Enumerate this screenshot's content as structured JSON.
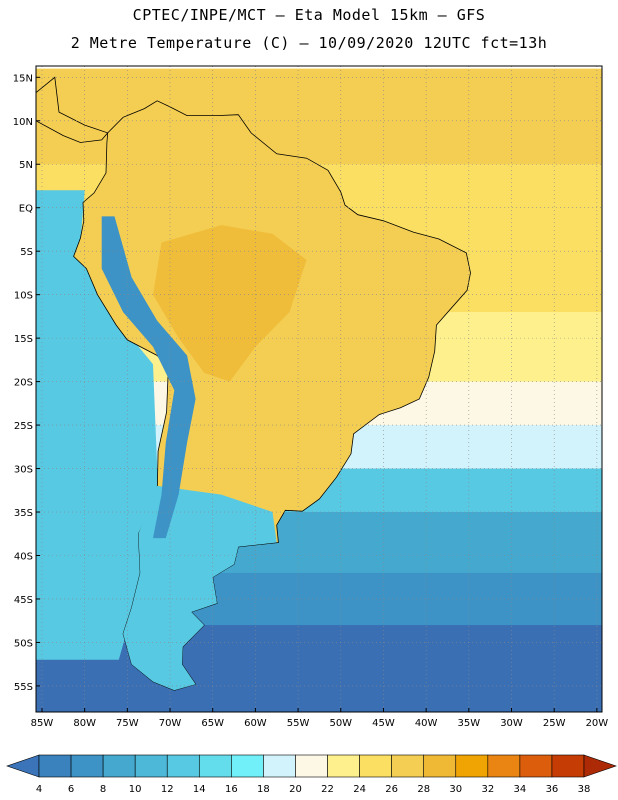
{
  "title_line1": "CPTEC/INPE/MCT –  Eta Model 15km – GFS",
  "title_line2": "2 Metre Temperature (C) – 10/09/2020 12UTC fct=13h",
  "lat_labels": [
    "15N",
    "10N",
    "5N",
    "EQ",
    "5S",
    "10S",
    "15S",
    "20S",
    "25S",
    "30S",
    "35S",
    "40S",
    "45S",
    "50S",
    "55S"
  ],
  "lon_labels": [
    "85W",
    "80W",
    "75W",
    "70W",
    "65W",
    "60W",
    "55W",
    "50W",
    "45W",
    "40W",
    "35W",
    "30W",
    "25W",
    "20W"
  ],
  "colorbar": {
    "ticks": [
      "4",
      "6",
      "8",
      "10",
      "12",
      "14",
      "16",
      "18",
      "20",
      "22",
      "24",
      "26",
      "28",
      "30",
      "32",
      "34",
      "36",
      "38"
    ],
    "colors": [
      "#3b74b8",
      "#3a82bd",
      "#3d92c6",
      "#45a8cf",
      "#4eb8d8",
      "#58c9e2",
      "#63dcec",
      "#72f0fa",
      "#d2f3fb",
      "#fdf8e6",
      "#fef08c",
      "#fbdf63",
      "#f4ce53",
      "#efb935",
      "#f0a404",
      "#ea8514",
      "#dc5d0c",
      "#c53d04",
      "#ad2a06"
    ]
  },
  "field": {
    "ocean_zones": [
      {
        "lat_from": 16,
        "lat_to": 5,
        "color": "#f4ce53"
      },
      {
        "lat_from": 5,
        "lat_to": -12,
        "color": "#fbdf63"
      },
      {
        "lat_from": -12,
        "lat_to": -20,
        "color": "#fef08c"
      },
      {
        "lat_from": -20,
        "lat_to": -25,
        "color": "#fdf8e6"
      },
      {
        "lat_from": -25,
        "lat_to": -30,
        "color": "#d2f3fb"
      },
      {
        "lat_from": -30,
        "lat_to": -35,
        "color": "#58c9e2"
      },
      {
        "lat_from": -35,
        "lat_to": -42,
        "color": "#45a8cf"
      },
      {
        "lat_from": -42,
        "lat_to": -48,
        "color": "#3d92c6"
      },
      {
        "lat_from": -48,
        "lat_to": -58,
        "color": "#3a6fb4"
      }
    ],
    "pacific_color": "#58c9e2",
    "land_color": "#f4ce53",
    "warm_core_color": "#efb935",
    "andes_color": "#3d92c6",
    "patagonia_color": "#58c9e2",
    "coast_color": "#000000"
  }
}
